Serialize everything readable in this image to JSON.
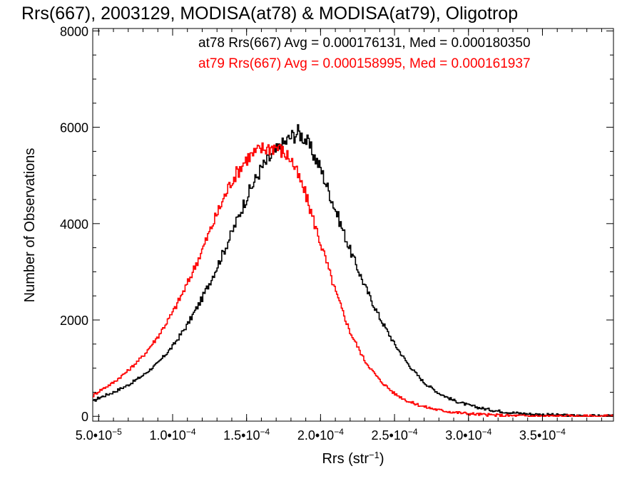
{
  "chart_data": {
    "type": "line",
    "title": "Rrs(667), 2003129, MODISA(at78) & MODISA(at79), Oligotrop",
    "xlabel": {
      "base": "Rrs (str",
      "exp": "−1",
      "close": ")"
    },
    "ylabel": "Number of Observations",
    "xlim": [
      4.6e-05,
      0.000398
    ],
    "ylim": [
      -100,
      8050
    ],
    "grid": false,
    "legend_position": "top-right",
    "x_ticks": [
      {
        "value": 5e-05,
        "mantissa": "5.0•10",
        "exp": "−5"
      },
      {
        "value": 0.0001,
        "mantissa": "1.0•10",
        "exp": "−4"
      },
      {
        "value": 0.00015,
        "mantissa": "1.5•10",
        "exp": "−4"
      },
      {
        "value": 0.0002,
        "mantissa": "2.0•10",
        "exp": "−4"
      },
      {
        "value": 0.00025,
        "mantissa": "2.5•10",
        "exp": "−4"
      },
      {
        "value": 0.0003,
        "mantissa": "3.0•10",
        "exp": "−4"
      },
      {
        "value": 0.00035,
        "mantissa": "3.5•10",
        "exp": "−4"
      }
    ],
    "y_ticks": [
      {
        "value": 0,
        "label": "0"
      },
      {
        "value": 2000,
        "label": "2000"
      },
      {
        "value": 4000,
        "label": "4000"
      },
      {
        "value": 6000,
        "label": "6000"
      },
      {
        "value": 8000,
        "label": "8000"
      }
    ],
    "series": [
      {
        "legend": "at78 Rrs(667) Avg = 0.000176131, Med = 0.000180350",
        "color": "#000000",
        "x": [
          4.6e-05,
          5e-05,
          6e-05,
          7e-05,
          8e-05,
          9e-05,
          0.0001,
          0.00011,
          0.00012,
          0.00013,
          0.00014,
          0.00015,
          0.00016,
          0.00017,
          0.00018,
          0.000185,
          0.00019,
          0.0002,
          0.00021,
          0.00022,
          0.00023,
          0.00024,
          0.00025,
          0.00026,
          0.00027,
          0.00028,
          0.00029,
          0.0003,
          0.00031,
          0.00032,
          0.00033,
          0.00034,
          0.00035,
          0.00036,
          0.00037,
          0.00038,
          0.00039,
          0.000398
        ],
        "y": [
          300,
          380,
          500,
          650,
          850,
          1100,
          1450,
          1900,
          2450,
          3100,
          3800,
          4550,
          5150,
          5500,
          5800,
          5900,
          5750,
          5150,
          4300,
          3450,
          2700,
          2050,
          1500,
          1050,
          700,
          480,
          330,
          230,
          160,
          110,
          75,
          50,
          35,
          25,
          15,
          10,
          5,
          5
        ]
      },
      {
        "legend": "at79 Rrs(667) Avg = 0.000158995, Med = 0.000161937",
        "color": "#ff0000",
        "x": [
          4.6e-05,
          5e-05,
          6e-05,
          7e-05,
          8e-05,
          9e-05,
          0.0001,
          0.00011,
          0.00012,
          0.00013,
          0.00014,
          0.00015,
          0.000155,
          0.00016,
          0.00017,
          0.00018,
          0.00019,
          0.0002,
          0.00021,
          0.00022,
          0.00023,
          0.00024,
          0.00025,
          0.00026,
          0.00027,
          0.00028,
          0.00029,
          0.0003,
          0.00031,
          0.00032,
          0.00033,
          0.00034,
          0.00035,
          0.00036,
          0.00037,
          0.00038,
          0.00039,
          0.000398
        ],
        "y": [
          420,
          520,
          700,
          950,
          1250,
          1650,
          2150,
          2750,
          3450,
          4200,
          4900,
          5350,
          5450,
          5550,
          5600,
          5350,
          4600,
          3600,
          2600,
          1750,
          1150,
          750,
          470,
          300,
          200,
          130,
          85,
          55,
          35,
          20,
          12,
          8,
          5,
          4,
          3,
          2,
          2,
          2
        ]
      }
    ]
  }
}
